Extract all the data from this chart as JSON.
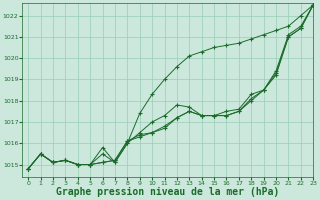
{
  "bg_color": "#cce8dc",
  "grid_color": "#99ccb8",
  "line_color": "#1a6b2a",
  "marker_color": "#1a6b2a",
  "xlabel": "Graphe pression niveau de la mer (hPa)",
  "xlabel_fontsize": 7,
  "xlim": [
    -0.5,
    23
  ],
  "ylim": [
    1014.4,
    1022.6
  ],
  "yticks": [
    1015,
    1016,
    1017,
    1018,
    1019,
    1020,
    1021,
    1022
  ],
  "xticks": [
    0,
    1,
    2,
    3,
    4,
    5,
    6,
    7,
    8,
    9,
    10,
    11,
    12,
    13,
    14,
    15,
    16,
    17,
    18,
    19,
    20,
    21,
    22,
    23
  ],
  "series": [
    [
      1014.8,
      1015.5,
      1015.1,
      1015.2,
      1015.0,
      1015.0,
      1015.5,
      1015.1,
      1016.0,
      1017.4,
      1018.3,
      1019.0,
      1019.6,
      1020.1,
      1020.3,
      1020.5,
      1020.6,
      1020.7,
      1020.9,
      1021.1,
      1021.3,
      1021.5,
      1022.0,
      1022.5
    ],
    [
      1014.8,
      1015.5,
      1015.1,
      1015.2,
      1015.0,
      1015.0,
      1015.8,
      1015.1,
      1016.0,
      1016.5,
      1017.0,
      1017.3,
      1017.8,
      1017.7,
      1017.3,
      1017.3,
      1017.5,
      1017.6,
      1018.3,
      1018.5,
      1019.4,
      1021.1,
      1021.5,
      1022.5
    ],
    [
      1014.8,
      1015.5,
      1015.1,
      1015.2,
      1015.0,
      1015.0,
      1015.1,
      1015.2,
      1016.1,
      1016.4,
      1016.5,
      1016.7,
      1017.2,
      1017.5,
      1017.3,
      1017.3,
      1017.3,
      1017.5,
      1018.1,
      1018.5,
      1019.3,
      1021.0,
      1021.4,
      1022.5
    ],
    [
      1014.8,
      1015.5,
      1015.1,
      1015.2,
      1015.0,
      1015.0,
      1015.1,
      1015.2,
      1016.1,
      1016.3,
      1016.5,
      1016.8,
      1017.2,
      1017.5,
      1017.3,
      1017.3,
      1017.3,
      1017.5,
      1018.0,
      1018.5,
      1019.2,
      1021.0,
      1021.4,
      1022.5
    ]
  ]
}
